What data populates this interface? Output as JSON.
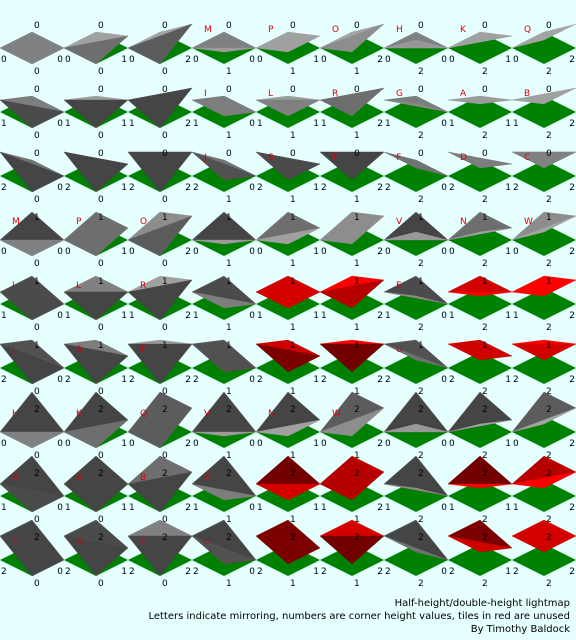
{
  "colors": {
    "background": "#e6ffff",
    "ground": "#008000",
    "tile_used": "#9a9a9a",
    "tile_unused": "#ff0000",
    "letter": "#e00000",
    "number": "#000000"
  },
  "caption": {
    "line1": "Half-height/double-height lightmap",
    "line2": "Letters indicate mirroring, numbers are corner height values, tiles in red are unused",
    "line3": "By Timothy Baldock"
  },
  "tiles": [
    [
      {
        "c": [
          "0",
          "0",
          "0",
          "0"
        ],
        "l": "",
        "u": false
      },
      {
        "c": [
          "0",
          "0",
          "1",
          "0"
        ],
        "l": "",
        "u": false
      },
      {
        "c": [
          "0",
          "0",
          "2",
          "0"
        ],
        "l": "",
        "u": false
      },
      {
        "c": [
          "0",
          "0",
          "0",
          "1"
        ],
        "l": "M",
        "u": false
      },
      {
        "c": [
          "0",
          "0",
          "1",
          "1"
        ],
        "l": "P",
        "u": false
      },
      {
        "c": [
          "0",
          "0",
          "2",
          "1"
        ],
        "l": "O",
        "u": false
      },
      {
        "c": [
          "0",
          "0",
          "0",
          "2"
        ],
        "l": "H",
        "u": false
      },
      {
        "c": [
          "0",
          "0",
          "1",
          "2"
        ],
        "l": "K",
        "u": false
      },
      {
        "c": [
          "0",
          "0",
          "2",
          "2"
        ],
        "l": "Q",
        "u": false
      }
    ],
    [
      {
        "c": [
          "1",
          "0",
          "0",
          "0"
        ],
        "l": "",
        "u": false
      },
      {
        "c": [
          "1",
          "0",
          "1",
          "0"
        ],
        "l": "",
        "u": false
      },
      {
        "c": [
          "1",
          "0",
          "2",
          "0"
        ],
        "l": "",
        "u": false
      },
      {
        "c": [
          "1",
          "0",
          "0",
          "1"
        ],
        "l": "I",
        "u": false
      },
      {
        "c": [
          "1",
          "0",
          "1",
          "1"
        ],
        "l": "L",
        "u": false
      },
      {
        "c": [
          "1",
          "0",
          "2",
          "1"
        ],
        "l": "R",
        "u": false
      },
      {
        "c": [
          "1",
          "0",
          "0",
          "2"
        ],
        "l": "G",
        "u": false
      },
      {
        "c": [
          "1",
          "0",
          "1",
          "2"
        ],
        "l": "A",
        "u": false
      },
      {
        "c": [
          "1",
          "0",
          "2",
          "2"
        ],
        "l": "B",
        "u": false
      }
    ],
    [
      {
        "c": [
          "2",
          "0",
          "0",
          "0"
        ],
        "l": "",
        "u": false
      },
      {
        "c": [
          "2",
          "0",
          "1",
          "0"
        ],
        "l": "",
        "u": false
      },
      {
        "c": [
          "2",
          "0",
          "2",
          "0"
        ],
        "l": "",
        "u": false
      },
      {
        "c": [
          "2",
          "0",
          "0",
          "1"
        ],
        "l": "J",
        "u": false
      },
      {
        "c": [
          "2",
          "0",
          "1",
          "1"
        ],
        "l": "S",
        "u": false
      },
      {
        "c": [
          "2",
          "0",
          "2",
          "1"
        ],
        "l": "T",
        "u": false
      },
      {
        "c": [
          "2",
          "0",
          "0",
          "2"
        ],
        "l": "F",
        "u": false
      },
      {
        "c": [
          "2",
          "0",
          "1",
          "2"
        ],
        "l": "D",
        "u": false
      },
      {
        "c": [
          "2",
          "0",
          "2",
          "2"
        ],
        "l": "C",
        "u": false
      }
    ],
    [
      {
        "c": [
          "0",
          "1",
          "0",
          "0"
        ],
        "l": "M",
        "u": false
      },
      {
        "c": [
          "0",
          "1",
          "1",
          "0"
        ],
        "l": "P",
        "u": false
      },
      {
        "c": [
          "0",
          "1",
          "2",
          "0"
        ],
        "l": "O",
        "u": false
      },
      {
        "c": [
          "0",
          "1",
          "0",
          "1"
        ],
        "l": "",
        "u": false
      },
      {
        "c": [
          "0",
          "1",
          "1",
          "1"
        ],
        "l": "",
        "u": false
      },
      {
        "c": [
          "0",
          "1",
          "2",
          "1"
        ],
        "l": "",
        "u": false
      },
      {
        "c": [
          "0",
          "1",
          "0",
          "2"
        ],
        "l": "V",
        "u": false
      },
      {
        "c": [
          "0",
          "1",
          "1",
          "2"
        ],
        "l": "N",
        "u": false
      },
      {
        "c": [
          "0",
          "1",
          "2",
          "2"
        ],
        "l": "W",
        "u": false
      }
    ],
    [
      {
        "c": [
          "1",
          "1",
          "0",
          "0"
        ],
        "l": "I",
        "u": false
      },
      {
        "c": [
          "1",
          "1",
          "1",
          "0"
        ],
        "l": "L",
        "u": false
      },
      {
        "c": [
          "1",
          "1",
          "2",
          "0"
        ],
        "l": "R",
        "u": false
      },
      {
        "c": [
          "1",
          "1",
          "0",
          "1"
        ],
        "l": "",
        "u": false
      },
      {
        "c": [
          "1",
          "1",
          "1",
          "1"
        ],
        "l": "",
        "u": true
      },
      {
        "c": [
          "1",
          "1",
          "2",
          "1"
        ],
        "l": "",
        "u": true
      },
      {
        "c": [
          "1",
          "1",
          "0",
          "2"
        ],
        "l": "E",
        "u": false
      },
      {
        "c": [
          "1",
          "1",
          "1",
          "2"
        ],
        "l": "",
        "u": true
      },
      {
        "c": [
          "1",
          "1",
          "2",
          "2"
        ],
        "l": "",
        "u": true
      }
    ],
    [
      {
        "c": [
          "2",
          "1",
          "0",
          "0"
        ],
        "l": "J",
        "u": false
      },
      {
        "c": [
          "2",
          "1",
          "1",
          "0"
        ],
        "l": "S",
        "u": false
      },
      {
        "c": [
          "2",
          "1",
          "2",
          "0"
        ],
        "l": "T",
        "u": false
      },
      {
        "c": [
          "2",
          "1",
          "0",
          "1"
        ],
        "l": "",
        "u": false
      },
      {
        "c": [
          "2",
          "1",
          "1",
          "1"
        ],
        "l": "",
        "u": true
      },
      {
        "c": [
          "2",
          "1",
          "2",
          "1"
        ],
        "l": "",
        "u": true
      },
      {
        "c": [
          "2",
          "1",
          "0",
          "2"
        ],
        "l": "U",
        "u": false
      },
      {
        "c": [
          "2",
          "1",
          "1",
          "2"
        ],
        "l": "",
        "u": true
      },
      {
        "c": [
          "2",
          "1",
          "2",
          "2"
        ],
        "l": "",
        "u": true
      }
    ],
    [
      {
        "c": [
          "0",
          "2",
          "0",
          "0"
        ],
        "l": "H",
        "u": false
      },
      {
        "c": [
          "0",
          "2",
          "1",
          "0"
        ],
        "l": "K",
        "u": false
      },
      {
        "c": [
          "0",
          "2",
          "2",
          "0"
        ],
        "l": "Q",
        "u": false
      },
      {
        "c": [
          "0",
          "2",
          "0",
          "1"
        ],
        "l": "V",
        "u": false
      },
      {
        "c": [
          "0",
          "2",
          "1",
          "1"
        ],
        "l": "N",
        "u": false
      },
      {
        "c": [
          "0",
          "2",
          "2",
          "1"
        ],
        "l": "W",
        "u": false
      },
      {
        "c": [
          "0",
          "2",
          "0",
          "2"
        ],
        "l": "",
        "u": false
      },
      {
        "c": [
          "0",
          "2",
          "1",
          "2"
        ],
        "l": "",
        "u": false
      },
      {
        "c": [
          "0",
          "2",
          "2",
          "2"
        ],
        "l": "",
        "u": false
      }
    ],
    [
      {
        "c": [
          "1",
          "2",
          "0",
          "0"
        ],
        "l": "G",
        "u": false
      },
      {
        "c": [
          "1",
          "2",
          "1",
          "0"
        ],
        "l": "A",
        "u": false
      },
      {
        "c": [
          "1",
          "2",
          "2",
          "0"
        ],
        "l": "B",
        "u": false
      },
      {
        "c": [
          "1",
          "2",
          "0",
          "1"
        ],
        "l": "E",
        "u": false
      },
      {
        "c": [
          "1",
          "2",
          "1",
          "1"
        ],
        "l": "",
        "u": true
      },
      {
        "c": [
          "1",
          "2",
          "2",
          "1"
        ],
        "l": "",
        "u": true
      },
      {
        "c": [
          "1",
          "2",
          "0",
          "2"
        ],
        "l": "",
        "u": false
      },
      {
        "c": [
          "1",
          "2",
          "1",
          "2"
        ],
        "l": "",
        "u": true
      },
      {
        "c": [
          "1",
          "2",
          "2",
          "2"
        ],
        "l": "",
        "u": true
      }
    ],
    [
      {
        "c": [
          "2",
          "2",
          "0",
          "0"
        ],
        "l": "F",
        "u": false
      },
      {
        "c": [
          "2",
          "2",
          "1",
          "0"
        ],
        "l": "D",
        "u": false
      },
      {
        "c": [
          "2",
          "2",
          "2",
          "0"
        ],
        "l": "C",
        "u": false
      },
      {
        "c": [
          "2",
          "2",
          "0",
          "1"
        ],
        "l": "U",
        "u": false
      },
      {
        "c": [
          "2",
          "2",
          "1",
          "1"
        ],
        "l": "",
        "u": true
      },
      {
        "c": [
          "2",
          "2",
          "2",
          "1"
        ],
        "l": "",
        "u": true
      },
      {
        "c": [
          "2",
          "2",
          "0",
          "2"
        ],
        "l": "",
        "u": false
      },
      {
        "c": [
          "2",
          "2",
          "1",
          "2"
        ],
        "l": "",
        "u": true
      },
      {
        "c": [
          "2",
          "2",
          "2",
          "2"
        ],
        "l": "",
        "u": true
      }
    ]
  ]
}
